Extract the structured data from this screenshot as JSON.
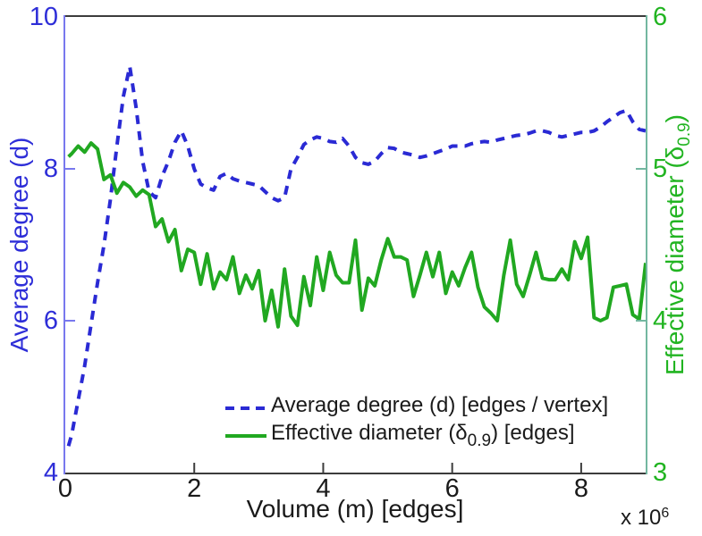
{
  "chart_data": {
    "type": "line",
    "title": "",
    "xlabel": "Volume (m) [edges]",
    "x_exponent": {
      "base": "x 10",
      "power": "6"
    },
    "x_axis": {
      "min": 0,
      "max": 9,
      "ticks": [
        0,
        2,
        4,
        6,
        8
      ],
      "unit_multiplier": 1000000
    },
    "y_left": {
      "label": "Average degree (d)",
      "min": 4,
      "max": 10,
      "ticks": [
        4,
        6,
        8,
        10
      ],
      "text_color": "#2e2ed8",
      "spine_color": "#7878ee"
    },
    "y_right": {
      "label_main": "Effective diameter (δ",
      "label_sub": "0.9",
      "label_close": ")",
      "min": 3,
      "max": 6,
      "ticks": [
        3,
        4,
        5,
        6
      ],
      "text_color": "#21b421",
      "spine_color": "#73b7a0"
    },
    "grid": false,
    "frame_color": "#3c3c3c",
    "series_x": [
      0.05,
      0.1,
      0.2,
      0.3,
      0.4,
      0.5,
      0.6,
      0.7,
      0.8,
      0.9,
      1.0,
      1.1,
      1.2,
      1.3,
      1.4,
      1.5,
      1.6,
      1.7,
      1.8,
      1.9,
      2.0,
      2.1,
      2.2,
      2.3,
      2.4,
      2.5,
      2.6,
      2.7,
      2.8,
      2.9,
      3.0,
      3.1,
      3.2,
      3.3,
      3.4,
      3.5,
      3.6,
      3.7,
      3.8,
      3.9,
      4.0,
      4.1,
      4.2,
      4.3,
      4.4,
      4.5,
      4.6,
      4.7,
      4.8,
      4.9,
      5.0,
      5.1,
      5.2,
      5.3,
      5.4,
      5.5,
      5.6,
      5.7,
      5.8,
      5.9,
      6.0,
      6.1,
      6.2,
      6.3,
      6.4,
      6.5,
      6.6,
      6.7,
      6.8,
      6.9,
      7.0,
      7.1,
      7.2,
      7.3,
      7.4,
      7.5,
      7.6,
      7.7,
      7.8,
      7.9,
      8.0,
      8.1,
      8.2,
      8.3,
      8.4,
      8.5,
      8.6,
      8.7,
      8.8,
      8.9,
      9.0
    ],
    "series": [
      {
        "name": "Average degree (d) [edges / vertex]",
        "axis": "left",
        "color": "#2a2ad4",
        "style": "dashed",
        "values": [
          4.35,
          4.5,
          4.95,
          5.4,
          5.95,
          6.5,
          7.0,
          7.6,
          8.3,
          8.95,
          9.35,
          8.8,
          8.1,
          7.7,
          7.62,
          7.9,
          8.1,
          8.35,
          8.5,
          8.3,
          8.0,
          7.8,
          7.75,
          7.72,
          7.9,
          7.94,
          7.87,
          7.84,
          7.82,
          7.8,
          7.78,
          7.7,
          7.62,
          7.58,
          7.62,
          8.0,
          8.15,
          8.32,
          8.38,
          8.42,
          8.4,
          8.36,
          8.35,
          8.4,
          8.3,
          8.15,
          8.08,
          8.06,
          8.1,
          8.2,
          8.28,
          8.27,
          8.22,
          8.2,
          8.18,
          8.15,
          8.17,
          8.2,
          8.23,
          8.26,
          8.3,
          8.3,
          8.3,
          8.33,
          8.35,
          8.36,
          8.35,
          8.38,
          8.4,
          8.42,
          8.44,
          8.45,
          8.47,
          8.5,
          8.5,
          8.48,
          8.44,
          8.42,
          8.44,
          8.46,
          8.48,
          8.48,
          8.5,
          8.55,
          8.62,
          8.68,
          8.74,
          8.77,
          8.62,
          8.52,
          8.5
        ]
      },
      {
        "name": "Effective diameter (δ0.9) [edges]",
        "axis": "right",
        "color": "#21a821",
        "style": "solid",
        "values": [
          5.08,
          5.1,
          5.15,
          5.11,
          5.17,
          5.13,
          4.93,
          4.96,
          4.84,
          4.91,
          4.88,
          4.82,
          4.86,
          4.83,
          4.62,
          4.67,
          4.52,
          4.6,
          4.33,
          4.47,
          4.45,
          4.24,
          4.44,
          4.21,
          4.32,
          4.27,
          4.42,
          4.18,
          4.3,
          4.21,
          4.33,
          4.0,
          4.2,
          3.96,
          4.34,
          4.03,
          3.97,
          4.29,
          4.1,
          4.42,
          4.2,
          4.45,
          4.3,
          4.25,
          4.25,
          4.53,
          4.07,
          4.28,
          4.23,
          4.4,
          4.54,
          4.42,
          4.42,
          4.4,
          4.16,
          4.3,
          4.45,
          4.29,
          4.45,
          4.18,
          4.32,
          4.23,
          4.35,
          4.45,
          4.22,
          4.09,
          4.05,
          4.0,
          4.3,
          4.53,
          4.24,
          4.16,
          4.3,
          4.45,
          4.28,
          4.27,
          4.27,
          4.34,
          4.27,
          4.52,
          4.41,
          4.55,
          4.02,
          4.0,
          4.02,
          4.22,
          4.23,
          4.24,
          4.04,
          4.01,
          4.38
        ]
      }
    ],
    "legend": {
      "position": "inside-bottom-center",
      "entries": [
        {
          "pre": "Average degree (d) [edges / vertex]",
          "sub": "",
          "post": ""
        },
        {
          "pre": "Effective diameter (δ",
          "sub": "0.9",
          "post": ") [edges]"
        }
      ]
    }
  }
}
